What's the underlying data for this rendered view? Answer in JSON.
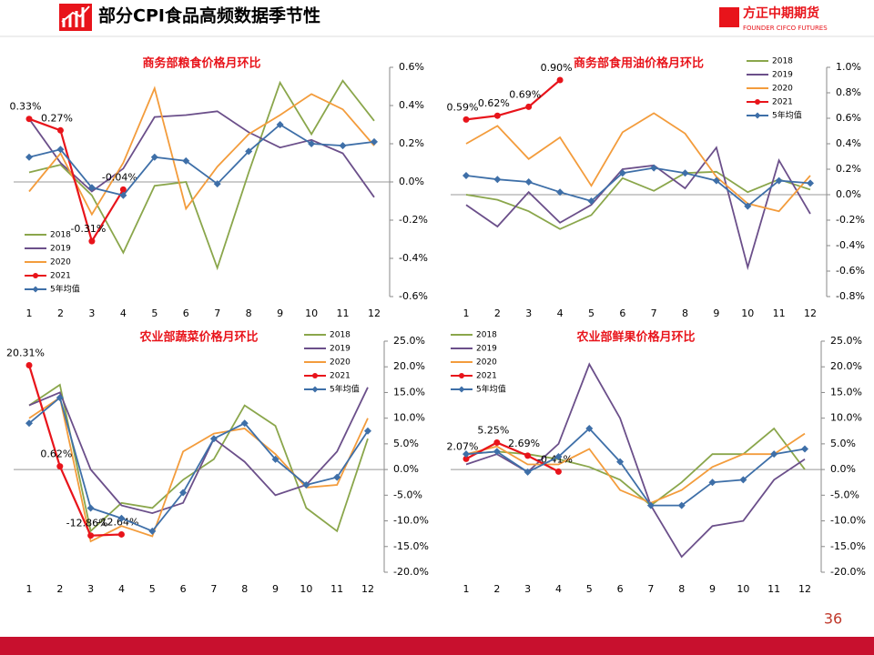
{
  "header": {
    "title": "部分CPI食品高频数据季节性",
    "logo": "方正中期期货",
    "logo_sub": "FOUNDER CIFCO FUTURES"
  },
  "page_number": "36",
  "chart_data": [
    {
      "type": "line",
      "title": "商务部粮食价格月环比",
      "legend": "lower left",
      "categories": [
        1,
        2,
        3,
        4,
        5,
        6,
        7,
        8,
        9,
        10,
        11,
        12
      ],
      "ylim": [
        -0.6,
        0.6
      ],
      "yticks": [
        {
          "value": -0.6,
          "label": "-0.6%"
        },
        {
          "value": -0.4,
          "label": "-0.4%"
        },
        {
          "value": -0.2,
          "label": "-0.2%"
        },
        {
          "value": 0,
          "label": "0.0%"
        },
        {
          "value": 0.2,
          "label": "0.2%"
        },
        {
          "value": 0.4,
          "label": "0.4%"
        },
        {
          "value": 0.6,
          "label": "0.6%"
        }
      ],
      "series": [
        {
          "name": "2018",
          "color": "#8aa64b",
          "values": [
            0.05,
            0.09,
            -0.07,
            -0.37,
            -0.02,
            0.0,
            -0.45,
            0.05,
            0.52,
            0.25,
            0.53,
            0.32
          ]
        },
        {
          "name": "2019",
          "color": "#6b4f8a",
          "values": [
            0.33,
            0.1,
            -0.05,
            0.07,
            0.34,
            0.35,
            0.37,
            0.26,
            0.18,
            0.22,
            0.15,
            -0.08
          ]
        },
        {
          "name": "2020",
          "color": "#f39c3c",
          "values": [
            -0.05,
            0.15,
            -0.17,
            0.1,
            0.49,
            -0.14,
            0.08,
            0.25,
            0.35,
            0.46,
            0.38,
            0.19
          ]
        },
        {
          "name": "2021",
          "color": "#e8141b",
          "values": [
            0.33,
            0.27,
            -0.31,
            -0.04,
            null,
            null,
            null,
            null,
            null,
            null,
            null,
            null
          ],
          "value_labels": [
            "0.33%",
            "0.27%",
            "-0.31%",
            "-0.04%",
            null,
            null,
            null,
            null,
            null,
            null,
            null,
            null
          ]
        },
        {
          "name": "5年均值",
          "color": "#3e6fa8",
          "values": [
            0.13,
            0.17,
            -0.03,
            -0.07,
            0.13,
            0.11,
            -0.01,
            0.16,
            0.3,
            0.2,
            0.19,
            0.21
          ]
        }
      ]
    },
    {
      "type": "line",
      "title": "商务部食用油价格月环比",
      "legend": "upper right",
      "categories": [
        1,
        2,
        3,
        4,
        5,
        6,
        7,
        8,
        9,
        10,
        11,
        12
      ],
      "ylim": [
        -0.8,
        1.0
      ],
      "yticks": [
        {
          "value": -0.8,
          "label": "-0.8%"
        },
        {
          "value": -0.6,
          "label": "-0.6%"
        },
        {
          "value": -0.4,
          "label": "-0.4%"
        },
        {
          "value": -0.2,
          "label": "-0.2%"
        },
        {
          "value": 0,
          "label": "0.0%"
        },
        {
          "value": 0.2,
          "label": "0.2%"
        },
        {
          "value": 0.4,
          "label": "0.4%"
        },
        {
          "value": 0.6,
          "label": "0.6%"
        },
        {
          "value": 0.8,
          "label": "0.8%"
        },
        {
          "value": 1.0,
          "label": "1.0%"
        }
      ],
      "series": [
        {
          "name": "2018",
          "color": "#8aa64b",
          "values": [
            0.0,
            -0.04,
            -0.13,
            -0.27,
            -0.16,
            0.13,
            0.03,
            0.17,
            0.18,
            0.02,
            0.12,
            0.04
          ]
        },
        {
          "name": "2019",
          "color": "#6b4f8a",
          "values": [
            -0.08,
            -0.25,
            0.02,
            -0.22,
            -0.08,
            0.2,
            0.23,
            0.05,
            0.37,
            -0.57,
            0.27,
            -0.15
          ]
        },
        {
          "name": "2020",
          "color": "#f39c3c",
          "values": [
            0.4,
            0.54,
            0.28,
            0.45,
            0.07,
            0.49,
            0.64,
            0.48,
            0.14,
            -0.07,
            -0.13,
            0.15
          ]
        },
        {
          "name": "2021",
          "color": "#e8141b",
          "values": [
            0.59,
            0.62,
            0.69,
            0.9,
            null,
            null,
            null,
            null,
            null,
            null,
            null,
            null
          ],
          "value_labels": [
            "0.59%",
            "0.62%",
            "0.69%",
            "0.90%",
            null,
            null,
            null,
            null,
            null,
            null,
            null,
            null
          ]
        },
        {
          "name": "5年均值",
          "color": "#3e6fa8",
          "values": [
            0.15,
            0.12,
            0.1,
            0.02,
            -0.05,
            0.17,
            0.21,
            0.17,
            0.11,
            -0.09,
            0.11,
            0.09
          ]
        }
      ]
    },
    {
      "type": "line",
      "title": "农业部蔬菜价格月环比",
      "legend": "upper right",
      "categories": [
        1,
        2,
        3,
        4,
        5,
        6,
        7,
        8,
        9,
        10,
        11,
        12
      ],
      "ylim": [
        -20,
        25
      ],
      "yticks": [
        {
          "value": -20,
          "label": "-20.0%"
        },
        {
          "value": -15,
          "label": "-15.0%"
        },
        {
          "value": -10,
          "label": "-10.0%"
        },
        {
          "value": -5,
          "label": "-5.0%"
        },
        {
          "value": 0,
          "label": "0.0%"
        },
        {
          "value": 5,
          "label": "5.0%"
        },
        {
          "value": 10,
          "label": "10.0%"
        },
        {
          "value": 15,
          "label": "15.0%"
        },
        {
          "value": 20,
          "label": "20.0%"
        },
        {
          "value": 25,
          "label": "25.0%"
        }
      ],
      "series": [
        {
          "name": "2018",
          "color": "#8aa64b",
          "values": [
            12.5,
            16.5,
            -12,
            -6.5,
            -7.5,
            -2,
            2,
            12.5,
            8.5,
            -7.5,
            -12,
            6
          ]
        },
        {
          "name": "2019",
          "color": "#6b4f8a",
          "values": [
            12.5,
            15,
            0,
            -7,
            -8.5,
            -6.5,
            6,
            1.5,
            -5,
            -3,
            3.5,
            16
          ]
        },
        {
          "name": "2020",
          "color": "#f39c3c",
          "values": [
            10,
            14,
            -14,
            -11,
            -13,
            3.5,
            7,
            8,
            3,
            -3.5,
            -3,
            10
          ]
        },
        {
          "name": "2021",
          "color": "#e8141b",
          "values": [
            20.31,
            0.62,
            -12.86,
            -12.64,
            null,
            null,
            null,
            null,
            null,
            null,
            null,
            null
          ],
          "value_labels": [
            "20.31%",
            "0.62%",
            "-12.86%",
            "-12.64%",
            null,
            null,
            null,
            null,
            null,
            null,
            null,
            null
          ]
        },
        {
          "name": "5年均值",
          "color": "#3e6fa8",
          "values": [
            9,
            14,
            -7.5,
            -9.5,
            -12,
            -4.5,
            6,
            9,
            2,
            -3,
            -1.5,
            7.5
          ]
        }
      ]
    },
    {
      "type": "line",
      "title": "农业部鲜果价格月环比",
      "legend": "upper left",
      "categories": [
        1,
        2,
        3,
        4,
        5,
        6,
        7,
        8,
        9,
        10,
        11,
        12
      ],
      "ylim": [
        -20,
        25
      ],
      "yticks": [
        {
          "value": -20,
          "label": "-20.0%"
        },
        {
          "value": -15,
          "label": "-15.0%"
        },
        {
          "value": -10,
          "label": "-10.0%"
        },
        {
          "value": -5,
          "label": "-5.0%"
        },
        {
          "value": 0,
          "label": "0.0%"
        },
        {
          "value": 5,
          "label": "5.0%"
        },
        {
          "value": 10,
          "label": "10.0%"
        },
        {
          "value": 15,
          "label": "15.0%"
        },
        {
          "value": 20,
          "label": "20.0%"
        },
        {
          "value": 25,
          "label": "25.0%"
        }
      ],
      "series": [
        {
          "name": "2018",
          "color": "#8aa64b",
          "values": [
            3,
            3.5,
            3,
            2,
            0.5,
            -2,
            -7,
            -2.5,
            3,
            3,
            8,
            0
          ]
        },
        {
          "name": "2019",
          "color": "#6b4f8a",
          "values": [
            1,
            3,
            -0.5,
            5,
            20.5,
            10,
            -7,
            -17,
            -11,
            -10,
            -2,
            2
          ]
        },
        {
          "name": "2020",
          "color": "#f39c3c",
          "values": [
            3,
            4.5,
            1,
            1,
            4,
            -4,
            -6.5,
            -4,
            0.5,
            3,
            3,
            7
          ]
        },
        {
          "name": "2021",
          "color": "#e8141b",
          "values": [
            2.07,
            5.25,
            2.69,
            -0.41,
            null,
            null,
            null,
            null,
            null,
            null,
            null,
            null
          ],
          "value_labels": [
            "2.07%",
            "5.25%",
            "2.69%",
            "-0.41%",
            null,
            null,
            null,
            null,
            null,
            null,
            null,
            null
          ]
        },
        {
          "name": "5年均值",
          "color": "#3e6fa8",
          "values": [
            3,
            3.5,
            -0.5,
            2.5,
            8,
            1.5,
            -7,
            -7,
            -2.5,
            -2,
            3,
            4
          ]
        }
      ]
    }
  ]
}
